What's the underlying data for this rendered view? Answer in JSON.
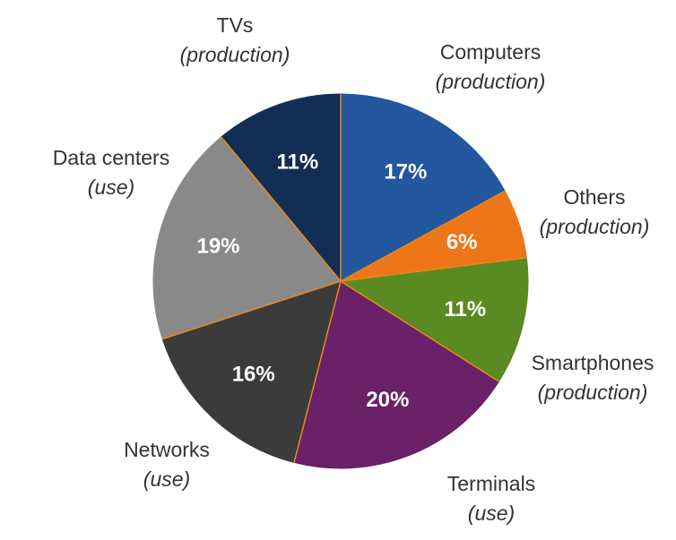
{
  "chart_data": {
    "type": "pie",
    "unit": "%",
    "slices": [
      {
        "category": "Computers",
        "note": "(production)",
        "value": 17,
        "label": "17%",
        "color": "#23579e"
      },
      {
        "category": "Others",
        "note": "(production)",
        "value": 6,
        "label": "6%",
        "color": "#ee7518"
      },
      {
        "category": "Smartphones",
        "note": "(production)",
        "value": 11,
        "label": "11%",
        "color": "#5a8a22"
      },
      {
        "category": "Terminals",
        "note": "(use)",
        "value": 20,
        "label": "20%",
        "color": "#6a2168"
      },
      {
        "category": "Networks",
        "note": "(use)",
        "value": 16,
        "label": "16%",
        "color": "#3b3b3b"
      },
      {
        "category": "Data centers",
        "note": "(use)",
        "value": 19,
        "label": "19%",
        "color": "#898989"
      },
      {
        "category": "TVs",
        "note": "(production)",
        "value": 11,
        "label": "11%",
        "color": "#122e55"
      }
    ],
    "separator_color": "#e88a1a",
    "legend": "none"
  }
}
